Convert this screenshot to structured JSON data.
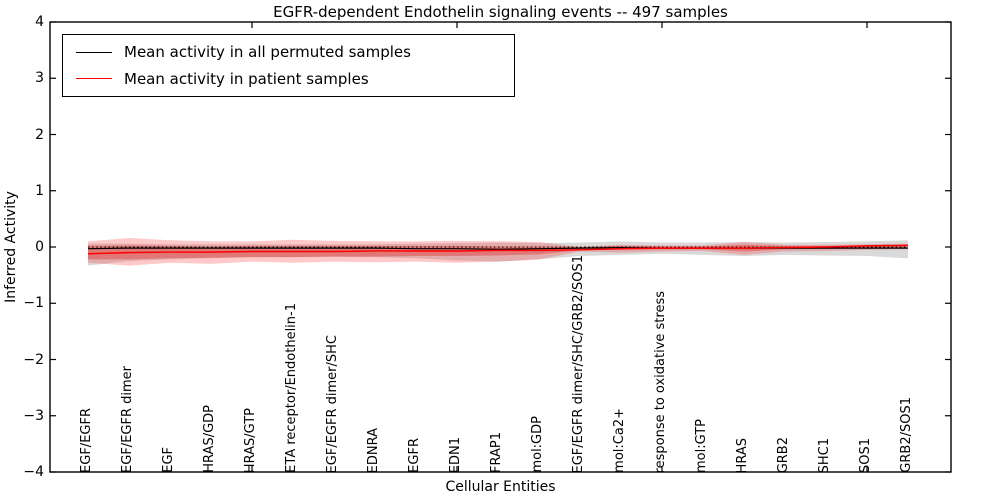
{
  "figure": {
    "title": "EGFR-dependent Endothelin signaling events -- 497 samples",
    "xlabel": "Cellular Entities",
    "ylabel": "Inferred Activity"
  },
  "legend": {
    "position": "upper left",
    "items": [
      {
        "label": "Mean activity in all permuted samples",
        "color": "#000000"
      },
      {
        "label": "Mean activity in patient samples",
        "color": "#ff0000"
      }
    ]
  },
  "chart_data": {
    "type": "line",
    "title": "EGFR-dependent Endothelin signaling events -- 497 samples",
    "xlabel": "Cellular Entities",
    "ylabel": "Inferred Activity",
    "ylim": [
      -4,
      4
    ],
    "yticks": [
      4,
      3,
      2,
      1,
      0,
      -1,
      -2,
      -3,
      -4
    ],
    "xticks_numeric": [
      0,
      5,
      10,
      15,
      20
    ],
    "grid": false,
    "legend_position": "upper left",
    "reference_line": {
      "y": 0,
      "style": "dotted",
      "color": "#000000"
    },
    "categories": [
      "EGF/EGFR",
      "EGF/EGFR dimer",
      "EGF",
      "HRAS/GDP",
      "HRAS/GTP",
      "ETA receptor/Endothelin-1",
      "EGF/EGFR dimer/SHC",
      "EDNRA",
      "EGFR",
      "EDN1",
      "FRAP1",
      "mol:GDP",
      "EGF/EGFR dimer/SHC/GRB2/SOS1",
      "mol:Ca2+",
      "response to oxidative stress",
      "mol:GTP",
      "HRAS",
      "GRB2",
      "SHC1",
      "SOS1",
      "GRB2/SOS1"
    ],
    "series": [
      {
        "name": "Mean activity in all permuted samples",
        "color": "#000000",
        "width": 1.2,
        "values": [
          -0.03,
          -0.02,
          -0.02,
          -0.02,
          -0.02,
          -0.02,
          -0.02,
          -0.02,
          -0.03,
          -0.03,
          -0.04,
          -0.03,
          -0.02,
          -0.01,
          -0.02,
          -0.02,
          -0.02,
          -0.02,
          -0.02,
          -0.02,
          -0.02
        ]
      },
      {
        "name": "Mean activity in patient samples",
        "color": "#ff0000",
        "width": 1.5,
        "values": [
          -0.12,
          -0.1,
          -0.09,
          -0.09,
          -0.08,
          -0.08,
          -0.08,
          -0.07,
          -0.07,
          -0.07,
          -0.06,
          -0.06,
          -0.05,
          -0.03,
          -0.02,
          -0.02,
          -0.02,
          -0.01,
          0.0,
          0.02,
          0.03
        ]
      }
    ],
    "bands": [
      {
        "name": "permuted-samples-spread",
        "fill": "rgba(128,128,128,0.30)",
        "upper": [
          0.06,
          0.06,
          0.05,
          0.05,
          0.05,
          0.05,
          0.05,
          0.05,
          0.06,
          0.07,
          0.08,
          0.07,
          0.08,
          0.1,
          0.08,
          0.08,
          0.09,
          0.08,
          0.09,
          0.1,
          0.12
        ],
        "lower": [
          -0.33,
          -0.25,
          -0.22,
          -0.2,
          -0.18,
          -0.18,
          -0.17,
          -0.18,
          -0.2,
          -0.24,
          -0.26,
          -0.22,
          -0.16,
          -0.14,
          -0.12,
          -0.14,
          -0.16,
          -0.14,
          -0.15,
          -0.16,
          -0.2
        ]
      },
      {
        "name": "patient-samples-spread-outer",
        "fill": "rgba(255,40,40,0.25)",
        "upper": [
          0.1,
          0.16,
          0.12,
          0.1,
          0.1,
          0.13,
          0.11,
          0.1,
          0.1,
          0.11,
          0.1,
          0.09,
          0.0,
          0.04,
          0.03,
          0.03,
          0.09,
          0.04,
          0.04,
          0.05,
          0.06
        ],
        "lower": [
          -0.28,
          -0.33,
          -0.28,
          -0.3,
          -0.26,
          -0.28,
          -0.26,
          -0.27,
          -0.26,
          -0.28,
          -0.26,
          -0.22,
          -0.08,
          -0.1,
          -0.08,
          -0.07,
          -0.14,
          -0.08,
          -0.07,
          -0.05,
          -0.04
        ]
      },
      {
        "name": "patient-samples-spread-inner",
        "fill": "rgba(220,0,0,0.30)",
        "upper": [
          0.02,
          0.03,
          0.02,
          0.01,
          0.02,
          0.02,
          0.02,
          0.02,
          0.02,
          0.02,
          0.01,
          0.01,
          0.0,
          0.02,
          0.01,
          0.01,
          0.04,
          0.02,
          0.02,
          0.03,
          0.04
        ],
        "lower": [
          -0.22,
          -0.22,
          -0.2,
          -0.19,
          -0.18,
          -0.18,
          -0.17,
          -0.17,
          -0.16,
          -0.16,
          -0.15,
          -0.13,
          -0.06,
          -0.05,
          -0.04,
          -0.04,
          -0.08,
          -0.04,
          -0.03,
          -0.02,
          -0.01
        ]
      }
    ]
  }
}
